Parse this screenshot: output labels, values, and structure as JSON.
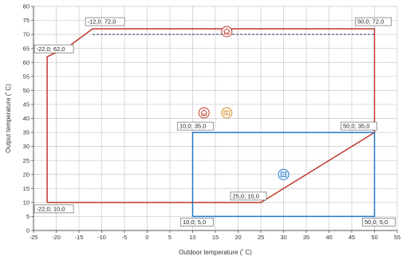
{
  "chart_data": {
    "type": "line",
    "title": "",
    "xlabel": "Outdoor temperature (ﾟC)",
    "ylabel": "Output temperature (ﾟC)",
    "xlim": [
      -25,
      55
    ],
    "ylim": [
      0,
      80
    ],
    "x_ticks": [
      -25,
      -20,
      -15,
      -10,
      -5,
      0,
      5,
      10,
      15,
      20,
      25,
      30,
      35,
      40,
      45,
      50,
      55
    ],
    "y_ticks": [
      0,
      5,
      10,
      15,
      20,
      25,
      30,
      35,
      40,
      45,
      50,
      55,
      60,
      65,
      70,
      75,
      80
    ],
    "grid": true,
    "colors": {
      "heating": "#c0392b",
      "cooling": "#1f78c8",
      "dhw": "#1f3864",
      "axis": "#555555",
      "grid": "#c8c8c8"
    },
    "series": [
      {
        "mode": "heating",
        "style": "solid",
        "points": [
          [
            -22,
            10
          ],
          [
            -22,
            62
          ],
          [
            -17,
            66
          ],
          [
            -12,
            72
          ],
          [
            50,
            72
          ],
          [
            50,
            35
          ],
          [
            25,
            10
          ],
          [
            -22,
            10
          ]
        ]
      },
      {
        "mode": "domestic hot water",
        "style": "dashed",
        "points": [
          [
            -12,
            70
          ],
          [
            50,
            70
          ]
        ]
      },
      {
        "mode": "cooling",
        "style": "solid",
        "points": [
          [
            10,
            5
          ],
          [
            10,
            35
          ],
          [
            50,
            35
          ],
          [
            50,
            5
          ],
          [
            10,
            5
          ]
        ]
      }
    ],
    "point_labels": [
      {
        "text": "-12,0; 72,0",
        "x": -12,
        "y": 72
      },
      {
        "text": "50,0; 72,0",
        "x": 50,
        "y": 72
      },
      {
        "text": "-22,0; 62,0",
        "x": -22,
        "y": 62
      },
      {
        "text": "10,0; 35,0",
        "x": 10,
        "y": 35
      },
      {
        "text": "50,0; 35,0",
        "x": 50,
        "y": 35
      },
      {
        "text": "25,0; 10,0",
        "x": 25,
        "y": 10
      },
      {
        "text": "-22,0; 10,0",
        "x": -22,
        "y": 10
      },
      {
        "text": "10,0; 5,0",
        "x": 10,
        "y": 5
      },
      {
        "text": "50,0; 5,0",
        "x": 50,
        "y": 5
      }
    ],
    "icons": [
      {
        "name": "dhw-tap-icon",
        "x": 17.5,
        "y": 71,
        "color": "#c0392b"
      },
      {
        "name": "heating-house-icon",
        "x": 12.5,
        "y": 42,
        "color": "#c0392b"
      },
      {
        "name": "underfloor-heating-icon",
        "x": 17.5,
        "y": 42,
        "color": "#d4881e"
      },
      {
        "name": "cooling-icon",
        "x": 30,
        "y": 20,
        "color": "#1f78c8"
      }
    ]
  }
}
